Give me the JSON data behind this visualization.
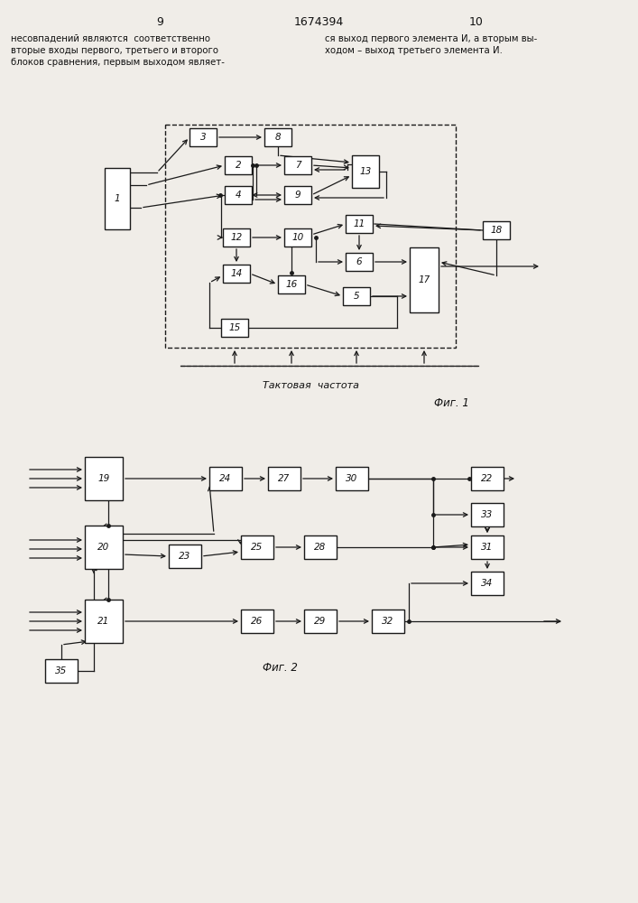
{
  "title": "1674394",
  "page_left": "9",
  "page_right": "10",
  "text_left": "несовпадений являются  соответственно\nвторые входы первого, третьего и второго\nблоков сравнения, первым выходом являет-",
  "text_right": "ся выход первого элемента И, а вторым вы-\nходом – выход третьего элемента И.",
  "fig1_label": "Фиг. 1",
  "fig2_label": "Фиг. 2",
  "clock_label": "Тактовая  частота",
  "bg_color": "#f0ede8",
  "box_color": "#ffffff",
  "line_color": "#1a1a1a",
  "text_color": "#111111"
}
